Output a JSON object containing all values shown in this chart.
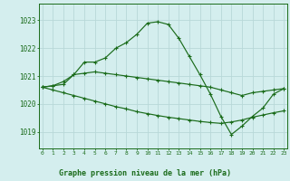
{
  "x": [
    0,
    1,
    2,
    3,
    4,
    5,
    6,
    7,
    8,
    9,
    10,
    11,
    12,
    13,
    14,
    15,
    16,
    17,
    18,
    19,
    20,
    21,
    22,
    23
  ],
  "line1": [
    1020.6,
    1020.65,
    1020.8,
    1021.05,
    1021.5,
    1021.5,
    1021.65,
    1022.0,
    1022.2,
    1022.5,
    1022.9,
    1022.95,
    1022.85,
    1022.35,
    1021.7,
    1021.05,
    1020.35,
    1019.55,
    1018.9,
    1019.2,
    1019.55,
    1019.85,
    1020.35,
    1020.55
  ],
  "line2": [
    1020.6,
    1020.65,
    1020.7,
    1021.05,
    1021.1,
    1021.15,
    1021.1,
    1021.05,
    1021.0,
    1020.95,
    1020.9,
    1020.85,
    1020.8,
    1020.75,
    1020.7,
    1020.65,
    1020.6,
    1020.5,
    1020.4,
    1020.3,
    1020.4,
    1020.45,
    1020.5,
    1020.55
  ],
  "line3": [
    1020.6,
    1020.5,
    1020.4,
    1020.3,
    1020.2,
    1020.1,
    1020.0,
    1019.9,
    1019.82,
    1019.72,
    1019.65,
    1019.58,
    1019.52,
    1019.47,
    1019.42,
    1019.37,
    1019.33,
    1019.3,
    1019.35,
    1019.42,
    1019.52,
    1019.6,
    1019.68,
    1019.75
  ],
  "line_color": "#1a6b1a",
  "bg_color": "#d4eeee",
  "grid_color": "#b8d8d8",
  "bottom_band_color": "#a8d4c8",
  "xlabel": "Graphe pression niveau de la mer (hPa)",
  "ytick_labels": [
    "1019",
    "1020",
    "1021",
    "1022",
    "1023"
  ],
  "ytick_vals": [
    1019,
    1020,
    1021,
    1022,
    1023
  ],
  "xtick_vals": [
    0,
    1,
    2,
    3,
    4,
    5,
    6,
    7,
    8,
    9,
    10,
    11,
    12,
    13,
    14,
    15,
    16,
    17,
    18,
    19,
    20,
    21,
    22,
    23
  ],
  "ylim": [
    1018.4,
    1023.6
  ],
  "xlim": [
    -0.3,
    23.3
  ]
}
